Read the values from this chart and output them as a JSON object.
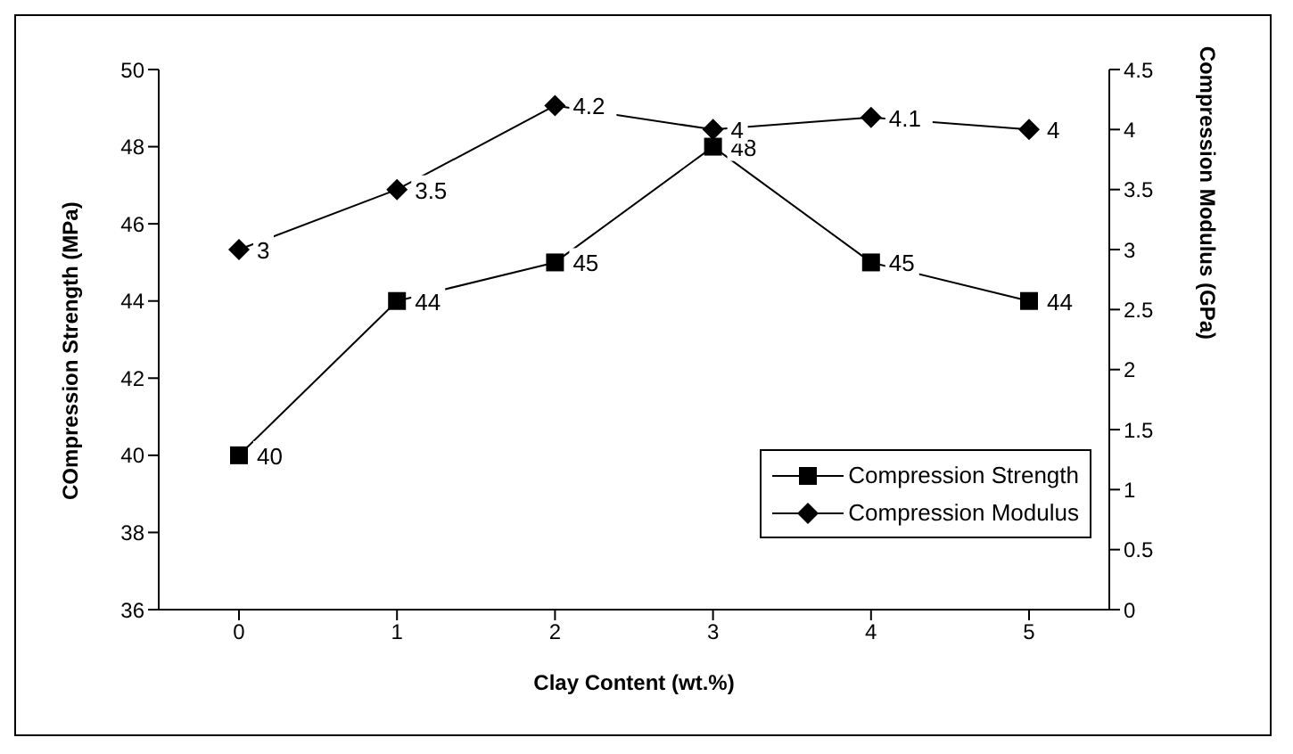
{
  "chart_data": {
    "type": "line",
    "xlabel": "Clay Content (wt.%)",
    "ylabel": "COmpression Strength (MPa)",
    "y2label": "Compression Modulus (GPa)",
    "categories": [
      "0",
      "1",
      "2",
      "3",
      "4",
      "5"
    ],
    "series": [
      {
        "name": "Compression Strength",
        "color": "#000000",
        "marker": "square",
        "values": [
          40,
          44,
          45,
          48,
          45,
          44
        ]
      },
      {
        "name": "Compression Modulus",
        "color": "#000000",
        "marker": "diamond",
        "axis": "y2",
        "values": [
          3,
          3.5,
          4.2,
          4,
          4.1,
          4
        ]
      }
    ],
    "ylim": [
      36,
      50
    ],
    "yticks": [
      36,
      38,
      40,
      42,
      44,
      46,
      48,
      50
    ],
    "y2lim": [
      0,
      4.5
    ],
    "y2ticks": [
      0,
      0.5,
      1,
      1.5,
      2,
      2.5,
      3,
      3.5,
      4,
      4.5
    ],
    "data_labels": true,
    "grid": false,
    "legend": "bottom right",
    "line_style": "solid"
  }
}
